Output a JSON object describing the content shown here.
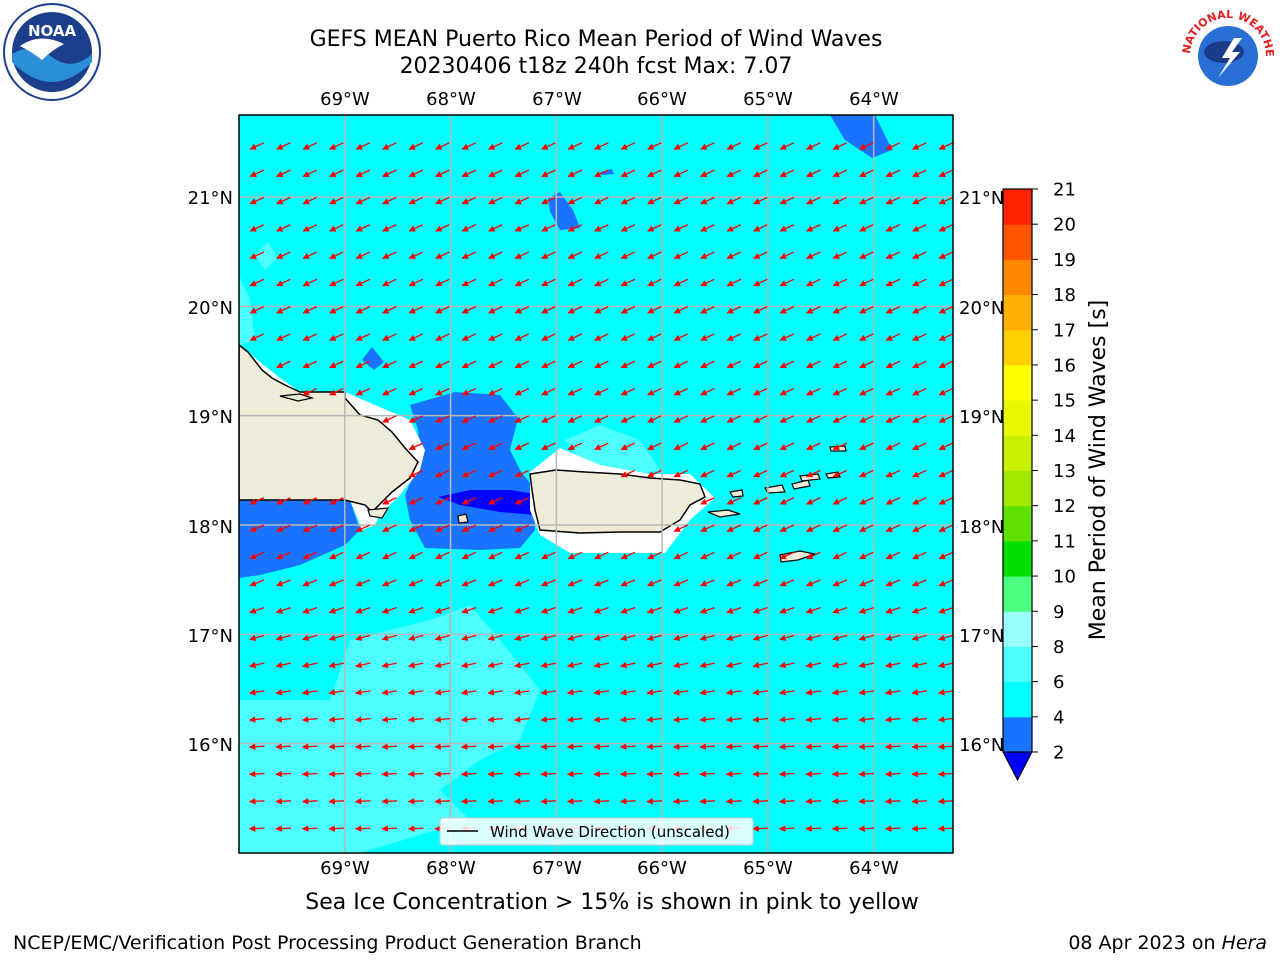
{
  "header": {
    "title_line1": "GEFS MEAN Puerto Rico Mean Period of Wind Waves",
    "title_line2": "20230406 t18z 240h fcst   Max: 7.07"
  },
  "logos": {
    "left": "noaa-logo",
    "right": "national-weather-service-logo",
    "left_text": "NOAA",
    "right_text": "NATIONAL WEATHER SERVICE"
  },
  "map": {
    "lon_labels": [
      "69°W",
      "68°W",
      "67°W",
      "66°W",
      "65°W",
      "64°W"
    ],
    "lat_labels": [
      "21°N",
      "20°N",
      "19°N",
      "18°N",
      "17°N",
      "16°N"
    ],
    "lon_range": [
      -70.0,
      -63.25
    ],
    "lat_range": [
      15.0,
      21.75
    ],
    "ocean_color": "#00ffff",
    "land_color": "#eeebd9",
    "arrow_color": "#ff0000",
    "wave_direction": "toward southwest, turning toward west in the south"
  },
  "legend": {
    "label": "Wind Wave Direction (unscaled)"
  },
  "colorbar": {
    "label": "Mean Period of Wind Waves [s]",
    "ticks": [
      "2",
      "4",
      "6",
      "8",
      "9",
      "10",
      "11",
      "12",
      "13",
      "14",
      "15",
      "16",
      "17",
      "18",
      "19",
      "20",
      "21"
    ],
    "colors": [
      "#1a73ff",
      "#00ffff",
      "#4dffff",
      "#99ffff",
      "#4cff80",
      "#00e000",
      "#60e000",
      "#a0e800",
      "#c8f000",
      "#e8f800",
      "#ffff00",
      "#ffd000",
      "#ffb000",
      "#ff8800",
      "#ff5500",
      "#ff2200"
    ],
    "under_color": "#0000ff"
  },
  "notes": {
    "ice": "Sea Ice Concentration > 15% is shown in pink to yellow"
  },
  "footer": {
    "left": "NCEP/EMC/Verification Post Processing Product Generation Branch",
    "date": "08 Apr 2023 on ",
    "machine": "Hera"
  }
}
